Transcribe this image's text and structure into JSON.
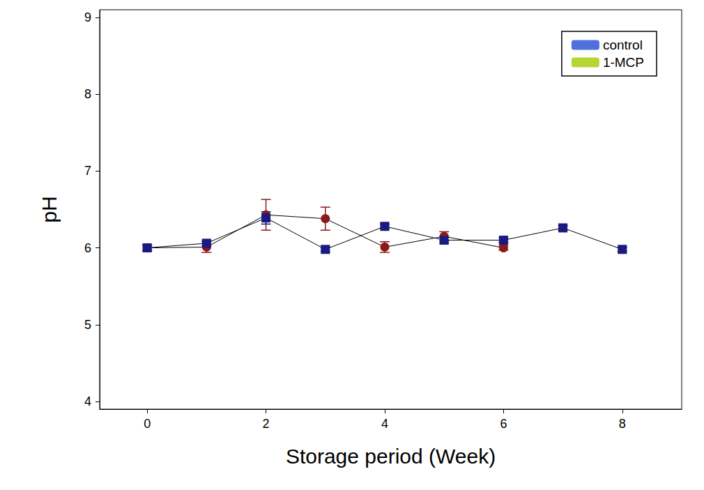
{
  "chart_data": {
    "type": "line",
    "x_label": "Storage period (Week)",
    "y_label": "pH",
    "x": [
      0,
      1,
      2,
      3,
      4,
      5,
      6,
      7,
      8
    ],
    "xlim": [
      -0.8,
      9
    ],
    "xticks": [
      0,
      2,
      4,
      6,
      8
    ],
    "ylim": [
      3.9,
      9.1
    ],
    "yticks": [
      4,
      5,
      6,
      7,
      8,
      9
    ],
    "grid": false,
    "legend": "top-right",
    "series": [
      {
        "name": "control",
        "color": "#8b1a1a",
        "marker": "circle",
        "values": [
          6.0,
          6.01,
          6.43,
          6.38,
          6.01,
          6.15,
          6.0,
          null,
          null
        ],
        "errors": [
          0.03,
          0.07,
          0.2,
          0.15,
          0.07,
          0.06,
          0.03,
          null,
          null
        ]
      },
      {
        "name": "1-MCP",
        "color": "#1a1a80",
        "marker": "square",
        "values": [
          6.0,
          6.06,
          6.39,
          5.98,
          6.28,
          6.1,
          6.1,
          6.26,
          5.98
        ],
        "errors": [
          0.04,
          0.03,
          0.08,
          0.03,
          0.03,
          0.04,
          0.03,
          0.03,
          0.03
        ]
      }
    ]
  }
}
